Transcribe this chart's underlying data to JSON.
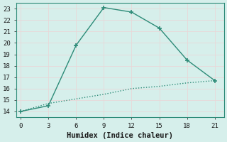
{
  "line1_x": [
    0,
    3,
    6,
    9,
    12,
    15,
    18,
    21
  ],
  "line1_y": [
    14.0,
    14.5,
    19.8,
    23.1,
    22.7,
    21.3,
    18.5,
    16.7
  ],
  "line2_x": [
    0,
    3,
    6,
    9,
    12,
    15,
    18,
    21
  ],
  "line2_y": [
    14.0,
    14.7,
    15.1,
    15.5,
    16.0,
    16.2,
    16.5,
    16.7
  ],
  "line_color": "#2d8b78",
  "xlabel": "Humidex (Indice chaleur)",
  "xlim": [
    -0.5,
    22
  ],
  "ylim": [
    13.5,
    23.5
  ],
  "yticks": [
    14,
    15,
    16,
    17,
    18,
    19,
    20,
    21,
    22,
    23
  ],
  "xticks": [
    0,
    3,
    6,
    9,
    12,
    15,
    18,
    21
  ],
  "bg_color": "#d6efeb",
  "grid_color": "#c8dbd8",
  "spine_color": "#2d8b78",
  "font_color": "#1a1a1a",
  "tick_fontsize": 6.5,
  "xlabel_fontsize": 7.5
}
